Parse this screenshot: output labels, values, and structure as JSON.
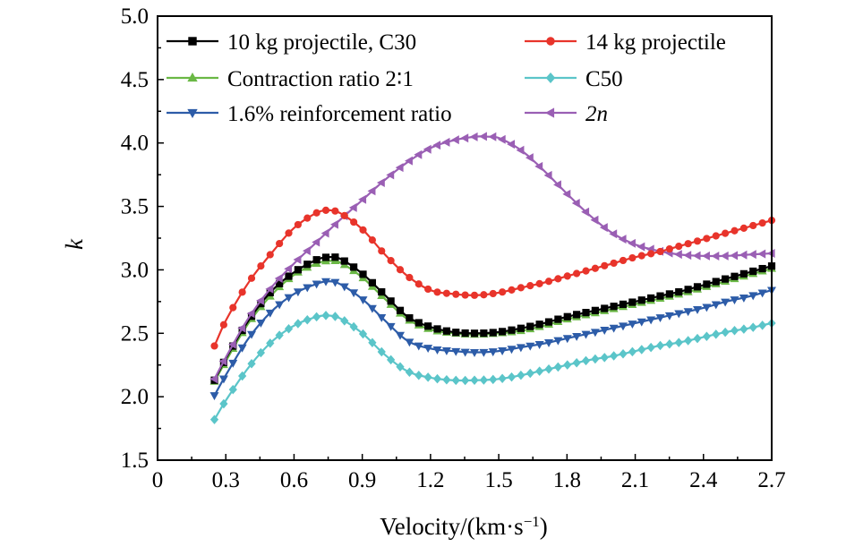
{
  "chart_data": {
    "type": "line",
    "title": "",
    "xlabel": "Velocity/(km·s⁻¹)",
    "xlabel_parts": {
      "base": "Velocity/(km·s",
      "sup": "−1",
      "close": ")"
    },
    "ylabel": "k",
    "xlim": [
      0,
      2.7
    ],
    "ylim": [
      1.5,
      5.0
    ],
    "xticks": [
      0,
      0.3,
      0.6,
      0.9,
      1.2,
      1.5,
      1.8,
      2.1,
      2.4,
      2.7
    ],
    "xtick_labels": [
      "0",
      "0.3",
      "0.6",
      "0.9",
      "1.2",
      "1.5",
      "1.8",
      "2.1",
      "2.4",
      "2.7"
    ],
    "yticks": [
      1.5,
      2.0,
      2.5,
      3.0,
      3.5,
      4.0,
      4.5,
      5.0
    ],
    "ytick_labels": [
      "1.5",
      "2.0",
      "2.5",
      "3.0",
      "3.5",
      "4.0",
      "4.5",
      "5.0"
    ],
    "grid": false,
    "legend": "top-left, two columns",
    "x_start": 0.25,
    "x_end": 2.7,
    "series": [
      {
        "name": "10 kg projectile, C30",
        "color": "#000000",
        "marker": "square",
        "marker_fill": "#000000",
        "x": [
          0.25,
          0.3,
          0.4,
          0.5,
          0.6,
          0.7,
          0.75,
          0.8,
          0.9,
          1.0,
          1.1,
          1.2,
          1.3,
          1.4,
          1.5,
          1.6,
          1.7,
          1.8,
          1.9,
          2.0,
          2.1,
          2.2,
          2.3,
          2.4,
          2.5,
          2.6,
          2.7
        ],
        "y": [
          2.13,
          2.3,
          2.6,
          2.83,
          2.98,
          3.08,
          3.1,
          3.09,
          2.97,
          2.8,
          2.63,
          2.55,
          2.51,
          2.5,
          2.51,
          2.54,
          2.58,
          2.63,
          2.67,
          2.71,
          2.75,
          2.79,
          2.83,
          2.88,
          2.93,
          2.98,
          3.03
        ]
      },
      {
        "name": "14 kg  projectile",
        "color": "#e8342b",
        "marker": "circle",
        "marker_fill": "#e8342b",
        "x": [
          0.25,
          0.3,
          0.4,
          0.5,
          0.6,
          0.7,
          0.75,
          0.8,
          0.9,
          1.0,
          1.1,
          1.2,
          1.3,
          1.4,
          1.5,
          1.6,
          1.7,
          1.8,
          1.9,
          2.0,
          2.1,
          2.2,
          2.3,
          2.4,
          2.5,
          2.6,
          2.7
        ],
        "y": [
          2.4,
          2.6,
          2.9,
          3.13,
          3.33,
          3.45,
          3.47,
          3.45,
          3.32,
          3.12,
          2.95,
          2.84,
          2.81,
          2.8,
          2.82,
          2.86,
          2.9,
          2.95,
          3.0,
          3.05,
          3.1,
          3.14,
          3.19,
          3.24,
          3.29,
          3.34,
          3.39
        ]
      },
      {
        "name": "Contraction ratio 2∶1",
        "color": "#6ab845",
        "marker": "triangle-up",
        "marker_fill": "#6ab845",
        "x": [
          0.25,
          0.3,
          0.4,
          0.5,
          0.6,
          0.7,
          0.75,
          0.8,
          0.9,
          1.0,
          1.1,
          1.2,
          1.3,
          1.4,
          1.5,
          1.6,
          1.7,
          1.8,
          1.9,
          2.0,
          2.1,
          2.2,
          2.3,
          2.4,
          2.5,
          2.6,
          2.7
        ],
        "y": [
          2.12,
          2.28,
          2.58,
          2.8,
          2.96,
          3.05,
          3.07,
          3.06,
          2.94,
          2.77,
          2.61,
          2.53,
          2.5,
          2.49,
          2.5,
          2.52,
          2.56,
          2.61,
          2.65,
          2.69,
          2.73,
          2.77,
          2.81,
          2.86,
          2.91,
          2.96,
          3.01
        ]
      },
      {
        "name": "C50",
        "color": "#5bc5c9",
        "marker": "diamond",
        "marker_fill": "#5bc5c9",
        "x": [
          0.25,
          0.3,
          0.4,
          0.5,
          0.6,
          0.7,
          0.75,
          0.8,
          0.9,
          1.0,
          1.1,
          1.2,
          1.3,
          1.4,
          1.5,
          1.6,
          1.7,
          1.8,
          1.9,
          2.0,
          2.1,
          2.2,
          2.3,
          2.4,
          2.5,
          2.6,
          2.7
        ],
        "y": [
          1.82,
          1.97,
          2.23,
          2.43,
          2.56,
          2.63,
          2.64,
          2.62,
          2.5,
          2.33,
          2.2,
          2.15,
          2.13,
          2.13,
          2.14,
          2.17,
          2.21,
          2.25,
          2.29,
          2.32,
          2.36,
          2.4,
          2.43,
          2.47,
          2.51,
          2.54,
          2.58
        ]
      },
      {
        "name": "1.6% reinforcement ratio",
        "color": "#2d5ca8",
        "marker": "triangle-down",
        "marker_fill": "#2d5ca8",
        "x": [
          0.25,
          0.3,
          0.4,
          0.5,
          0.6,
          0.7,
          0.75,
          0.8,
          0.9,
          1.0,
          1.1,
          1.2,
          1.3,
          1.4,
          1.5,
          1.6,
          1.7,
          1.8,
          1.9,
          2.0,
          2.1,
          2.2,
          2.3,
          2.4,
          2.5,
          2.6,
          2.7
        ],
        "y": [
          2.01,
          2.17,
          2.46,
          2.67,
          2.81,
          2.89,
          2.91,
          2.89,
          2.77,
          2.6,
          2.44,
          2.38,
          2.36,
          2.35,
          2.36,
          2.39,
          2.42,
          2.46,
          2.5,
          2.54,
          2.58,
          2.62,
          2.66,
          2.7,
          2.75,
          2.79,
          2.84
        ]
      },
      {
        "name": "2n",
        "color": "#9a5fb4",
        "marker": "triangle-left",
        "marker_fill": "#9a5fb4",
        "x": [
          0.25,
          0.3,
          0.4,
          0.5,
          0.6,
          0.7,
          0.8,
          0.9,
          1.0,
          1.1,
          1.2,
          1.3,
          1.4,
          1.45,
          1.5,
          1.6,
          1.7,
          1.8,
          1.9,
          2.0,
          2.1,
          2.2,
          2.3,
          2.4,
          2.5,
          2.6,
          2.7
        ],
        "y": [
          2.14,
          2.31,
          2.62,
          2.86,
          3.05,
          3.22,
          3.39,
          3.55,
          3.71,
          3.85,
          3.96,
          4.02,
          4.05,
          4.05,
          4.04,
          3.94,
          3.78,
          3.6,
          3.43,
          3.29,
          3.2,
          3.15,
          3.12,
          3.11,
          3.11,
          3.12,
          3.13
        ]
      }
    ]
  }
}
